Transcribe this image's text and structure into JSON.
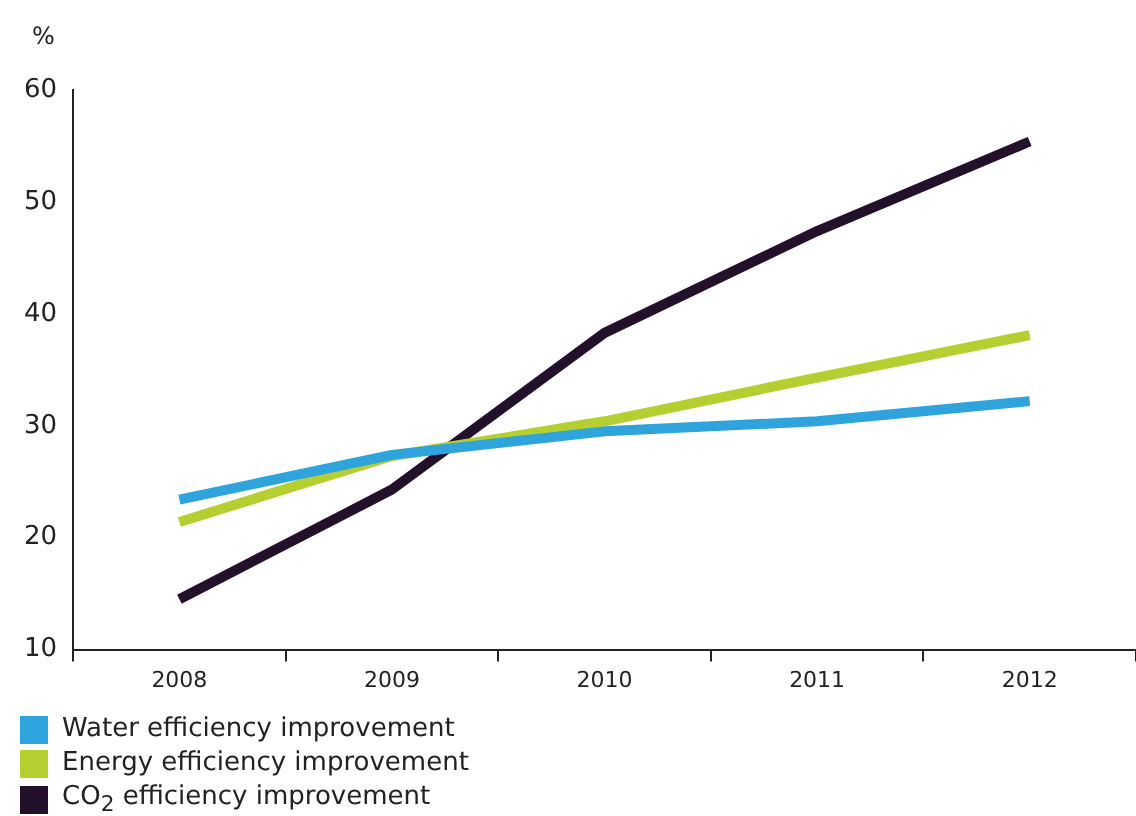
{
  "chart_data": {
    "type": "line",
    "ylabel": "%",
    "categories": [
      "2008",
      "2009",
      "2010",
      "2011",
      "2012"
    ],
    "series": [
      {
        "name": "Water efficiency improvement",
        "color": "#2ea3dc",
        "values": [
          23.4,
          27.4,
          29.5,
          30.4,
          32.2
        ]
      },
      {
        "name": "Energy efficiency improvement",
        "color": "#b5cf30",
        "values": [
          21.4,
          27.3,
          30.4,
          34.3,
          38.1
        ]
      },
      {
        "name": "CO$_{2}$ efficiency improvement",
        "color": "#23112b",
        "values": [
          14.5,
          24.3,
          38.3,
          47.4,
          55.4
        ]
      }
    ],
    "ylim": [
      10,
      60
    ],
    "yticks": [
      10,
      20,
      30,
      40,
      50,
      60
    ],
    "grid": false,
    "legend": "bottom left",
    "marker": "none",
    "line_style": "solid"
  }
}
